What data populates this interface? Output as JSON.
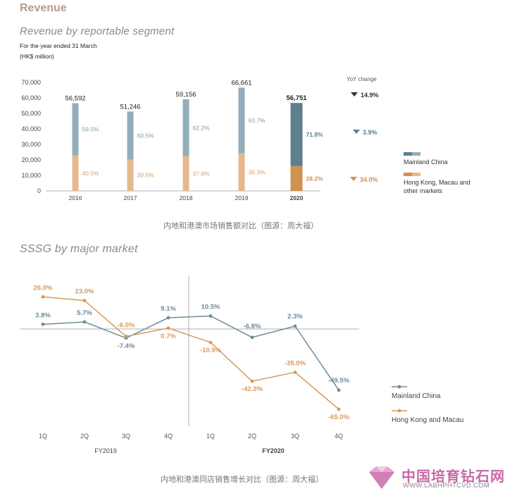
{
  "section_title": "Revenue",
  "colors": {
    "mainland": "#93adbb",
    "mainland_2020": "#5f7f8e",
    "hk": "#e5b98c",
    "hk_2020": "#d2914f",
    "line_mainland": "#6d8c99",
    "line_hk": "#d59a5b"
  },
  "chart_data": [
    {
      "type": "bar",
      "stacked": true,
      "title": "Revenue by reportable segment",
      "subtitle_lines": [
        "For the year ended 31 March",
        "(HK$ million)"
      ],
      "categories": [
        "2016",
        "2017",
        "2018",
        "2019",
        "2020"
      ],
      "totals": [
        56592,
        51246,
        59156,
        66661,
        56751
      ],
      "total_labels": [
        "56,592",
        "51,246",
        "59,156",
        "66,661",
        "56,751"
      ],
      "series": [
        {
          "name": "Mainland China",
          "share_labels": [
            "59.5%",
            "60.5%",
            "62.2%",
            "63.7%",
            "71.8%"
          ],
          "share": [
            59.5,
            60.5,
            62.2,
            63.7,
            71.8
          ]
        },
        {
          "name": "Hong Kong, Macau and other markets",
          "share_labels": [
            "40.5%",
            "39.5%",
            "37.8%",
            "36.3%",
            "28.2%"
          ],
          "share": [
            40.5,
            39.5,
            37.8,
            36.3,
            28.2
          ]
        }
      ],
      "ylim": [
        0,
        70000
      ],
      "yticks": [
        0,
        10000,
        20000,
        30000,
        40000,
        50000,
        60000,
        70000
      ],
      "ytick_labels": [
        "0",
        "10,000",
        "20,000",
        "30,000",
        "40,000",
        "50,000",
        "60,000",
        "70,000"
      ],
      "yoy": {
        "header": "YoY change",
        "total": "14.9%",
        "mainland": "3.9%",
        "hk": "34.0%",
        "direction": "down"
      },
      "legend": [
        "Mainland China",
        "Hong Kong, Macau and other markets"
      ],
      "legend_hk_lines": [
        "Hong Kong, Macau and",
        "other markets"
      ],
      "caption": "内地和港澳市场销售额对比（图源：周大福）"
    },
    {
      "type": "line",
      "title": "SSSG by major market",
      "quarters": [
        "1Q",
        "2Q",
        "3Q",
        "4Q",
        "1Q",
        "2Q",
        "3Q",
        "4Q"
      ],
      "groups": [
        "FY2019",
        "FY2020"
      ],
      "series": [
        {
          "name": "Mainland China",
          "values": [
            3.8,
            5.7,
            -7.4,
            9.1,
            10.5,
            -6.8,
            2.3,
            -49.5
          ],
          "labels": [
            "3.8%",
            "5.7%",
            "-7.4%",
            "9.1%",
            "10.5%",
            "-6.8%",
            "2.3%",
            "-49.5%"
          ]
        },
        {
          "name": "Hong Kong and Macau",
          "values": [
            26.0,
            23.0,
            -6.0,
            0.7,
            -10.9,
            -42.3,
            -35.0,
            -65.0
          ],
          "labels": [
            "26.0%",
            "23.0%",
            "-6.0%",
            "0.7%",
            "-10.9%",
            "-42.3%",
            "-35.0%",
            "-65.0%"
          ]
        }
      ],
      "legend": [
        "Mainland China",
        "Hong Kong and Macau"
      ],
      "caption": "内地和港澳同店销售增长对比（图源：周大福）"
    }
  ],
  "watermark": {
    "name": "中国培育钻石网",
    "url": "WWW.LABHPHTCVD.COM"
  }
}
